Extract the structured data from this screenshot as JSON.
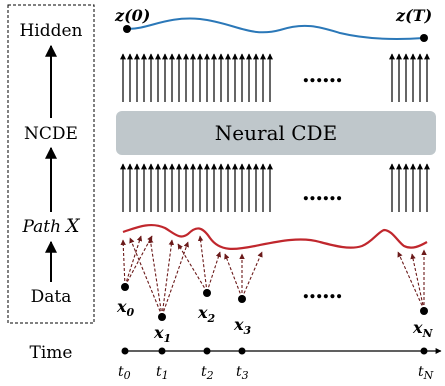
{
  "legend": {
    "hidden": "Hidden",
    "ncde": "NCDE",
    "path_word": "Path",
    "path_var": "X",
    "data": "Data",
    "time": "Time"
  },
  "hidden_curve": {
    "start_label": "z(0)",
    "end_label": "z(T)",
    "color": "#2b78b8"
  },
  "path_curve": {
    "color": "#c0272d"
  },
  "ncde_box": {
    "label": "Neural CDE",
    "color": "#bfc7cb"
  },
  "ellipsis": "......",
  "data_points": [
    {
      "var": "x",
      "sub": "0"
    },
    {
      "var": "x",
      "sub": "1"
    },
    {
      "var": "x",
      "sub": "2"
    },
    {
      "var": "x",
      "sub": "3"
    },
    {
      "var": "x",
      "sub": "N"
    }
  ],
  "time_ticks": [
    {
      "var": "t",
      "sub": "0"
    },
    {
      "var": "t",
      "sub": "1"
    },
    {
      "var": "t",
      "sub": "2"
    },
    {
      "var": "t",
      "sub": "3"
    },
    {
      "var": "t",
      "sub": "N"
    }
  ],
  "dashed_arrow_color": "#6b1a1a"
}
